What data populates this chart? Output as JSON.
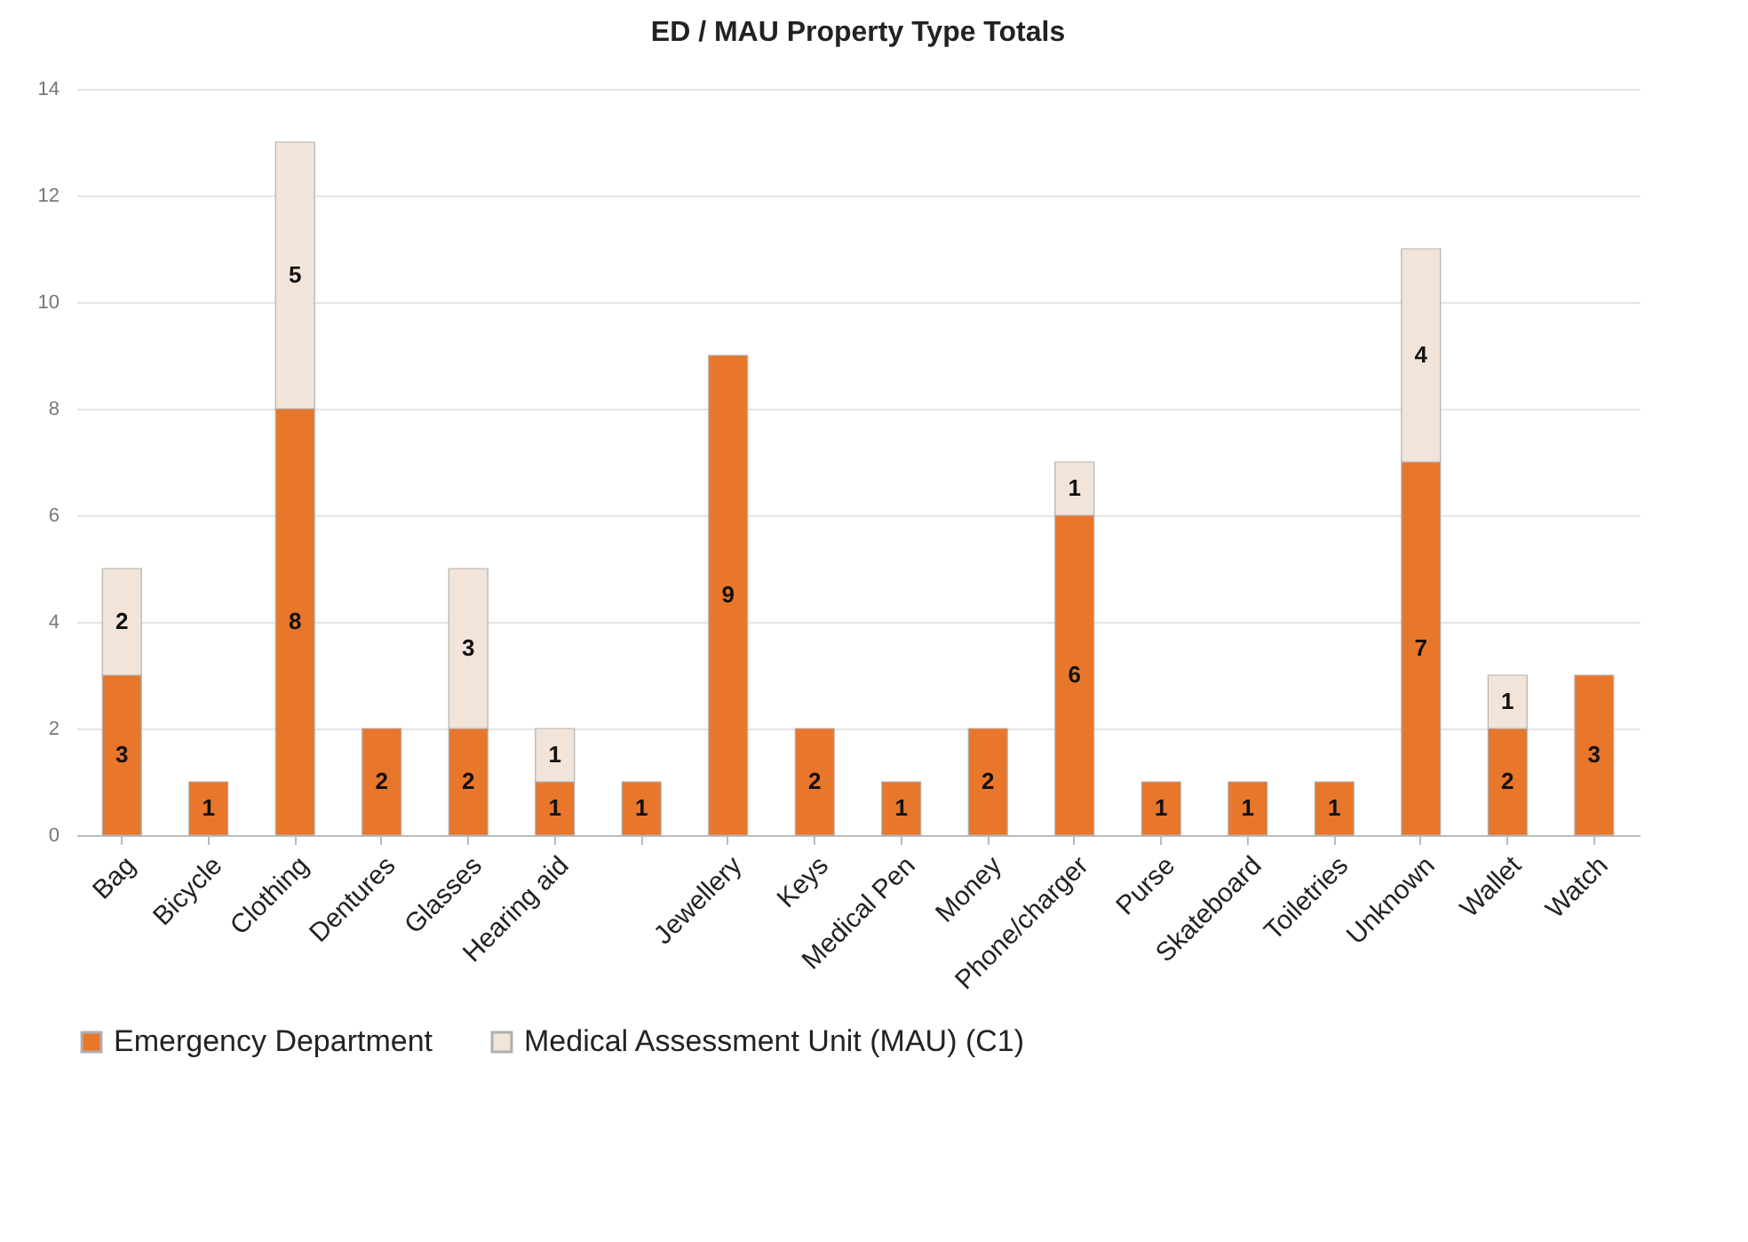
{
  "chart_data": {
    "type": "bar",
    "title": "ED / MAU Property Type Totals",
    "stacked": true,
    "categories": [
      "Bag",
      "Bicycle",
      "Clothing",
      "Dentures",
      "Glasses",
      "Hearing aid",
      null,
      "Jewellery",
      "Keys",
      "Medical Pen",
      "Money",
      "Phone/charger",
      "Purse",
      "Skateboard",
      "Toiletries",
      "Unknown",
      "Wallet",
      "Watch"
    ],
    "series": [
      {
        "name": "Emergency Department",
        "color": "#e8762b",
        "values": [
          3,
          1,
          8,
          2,
          2,
          1,
          1,
          9,
          2,
          1,
          2,
          6,
          1,
          1,
          1,
          7,
          2,
          3
        ]
      },
      {
        "name": "Medical Assessment Unit (MAU) (C1)",
        "color": "#f2e4d8",
        "values": [
          2,
          null,
          5,
          null,
          3,
          1,
          null,
          null,
          null,
          null,
          null,
          1,
          null,
          null,
          null,
          4,
          1,
          null
        ]
      }
    ],
    "ylim": [
      0,
      14
    ],
    "yticks": [
      0,
      2,
      4,
      6,
      8,
      10,
      12,
      14
    ],
    "grid": "y",
    "legend": "bottom",
    "data_labels": true
  }
}
